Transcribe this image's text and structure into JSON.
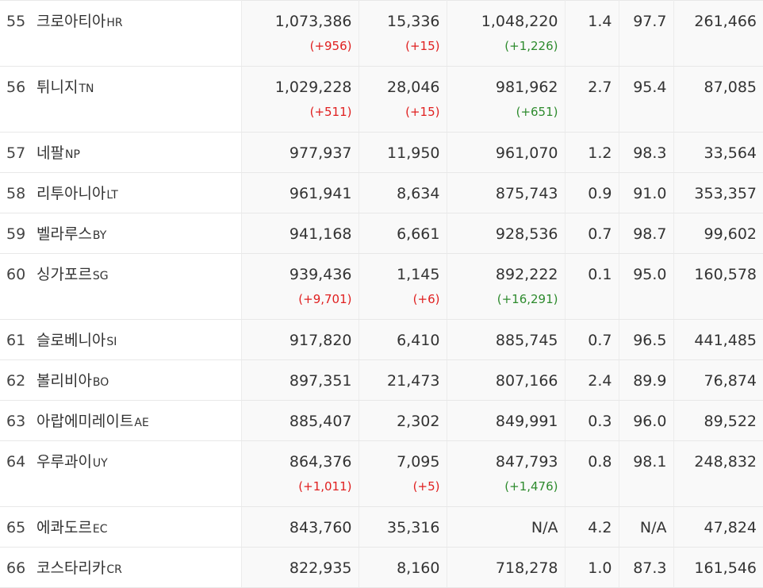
{
  "colors": {
    "increase_red": "#e02020",
    "increase_green": "#2e8b2e"
  },
  "rows": [
    {
      "rank": "55",
      "name": "크로아티아",
      "code": "HR",
      "cases": "1,073,386",
      "cases_delta": "(+956)",
      "deaths": "15,336",
      "deaths_delta": "(+15)",
      "recovered": "1,048,220",
      "recovered_delta": "(+1,226)",
      "fatality": "1.4",
      "recovery_rate": "97.7",
      "per_million": "261,466"
    },
    {
      "rank": "56",
      "name": "튀니지",
      "code": "TN",
      "cases": "1,029,228",
      "cases_delta": "(+511)",
      "deaths": "28,046",
      "deaths_delta": "(+15)",
      "recovered": "981,962",
      "recovered_delta": "(+651)",
      "fatality": "2.7",
      "recovery_rate": "95.4",
      "per_million": "87,085"
    },
    {
      "rank": "57",
      "name": "네팔",
      "code": "NP",
      "cases": "977,937",
      "cases_delta": "",
      "deaths": "11,950",
      "deaths_delta": "",
      "recovered": "961,070",
      "recovered_delta": "",
      "fatality": "1.2",
      "recovery_rate": "98.3",
      "per_million": "33,564"
    },
    {
      "rank": "58",
      "name": "리투아니아",
      "code": "LT",
      "cases": "961,941",
      "cases_delta": "",
      "deaths": "8,634",
      "deaths_delta": "",
      "recovered": "875,743",
      "recovered_delta": "",
      "fatality": "0.9",
      "recovery_rate": "91.0",
      "per_million": "353,357"
    },
    {
      "rank": "59",
      "name": "벨라루스",
      "code": "BY",
      "cases": "941,168",
      "cases_delta": "",
      "deaths": "6,661",
      "deaths_delta": "",
      "recovered": "928,536",
      "recovered_delta": "",
      "fatality": "0.7",
      "recovery_rate": "98.7",
      "per_million": "99,602"
    },
    {
      "rank": "60",
      "name": "싱가포르",
      "code": "SG",
      "cases": "939,436",
      "cases_delta": "(+9,701)",
      "deaths": "1,145",
      "deaths_delta": "(+6)",
      "recovered": "892,222",
      "recovered_delta": "(+16,291)",
      "fatality": "0.1",
      "recovery_rate": "95.0",
      "per_million": "160,578"
    },
    {
      "rank": "61",
      "name": "슬로베니아",
      "code": "SI",
      "cases": "917,820",
      "cases_delta": "",
      "deaths": "6,410",
      "deaths_delta": "",
      "recovered": "885,745",
      "recovered_delta": "",
      "fatality": "0.7",
      "recovery_rate": "96.5",
      "per_million": "441,485"
    },
    {
      "rank": "62",
      "name": "볼리비아",
      "code": "BO",
      "cases": "897,351",
      "cases_delta": "",
      "deaths": "21,473",
      "deaths_delta": "",
      "recovered": "807,166",
      "recovered_delta": "",
      "fatality": "2.4",
      "recovery_rate": "89.9",
      "per_million": "76,874"
    },
    {
      "rank": "63",
      "name": "아랍에미레이트",
      "code": "AE",
      "cases": "885,407",
      "cases_delta": "",
      "deaths": "2,302",
      "deaths_delta": "",
      "recovered": "849,991",
      "recovered_delta": "",
      "fatality": "0.3",
      "recovery_rate": "96.0",
      "per_million": "89,522"
    },
    {
      "rank": "64",
      "name": "우루과이",
      "code": "UY",
      "cases": "864,376",
      "cases_delta": "(+1,011)",
      "deaths": "7,095",
      "deaths_delta": "(+5)",
      "recovered": "847,793",
      "recovered_delta": "(+1,476)",
      "fatality": "0.8",
      "recovery_rate": "98.1",
      "per_million": "248,832"
    },
    {
      "rank": "65",
      "name": "에콰도르",
      "code": "EC",
      "cases": "843,760",
      "cases_delta": "",
      "deaths": "35,316",
      "deaths_delta": "",
      "recovered": "N/A",
      "recovered_delta": "",
      "fatality": "4.2",
      "recovery_rate": "N/A",
      "per_million": "47,824"
    },
    {
      "rank": "66",
      "name": "코스타리카",
      "code": "CR",
      "cases": "822,935",
      "cases_delta": "",
      "deaths": "8,160",
      "deaths_delta": "",
      "recovered": "718,278",
      "recovered_delta": "",
      "fatality": "1.0",
      "recovery_rate": "87.3",
      "per_million": "161,546"
    }
  ]
}
